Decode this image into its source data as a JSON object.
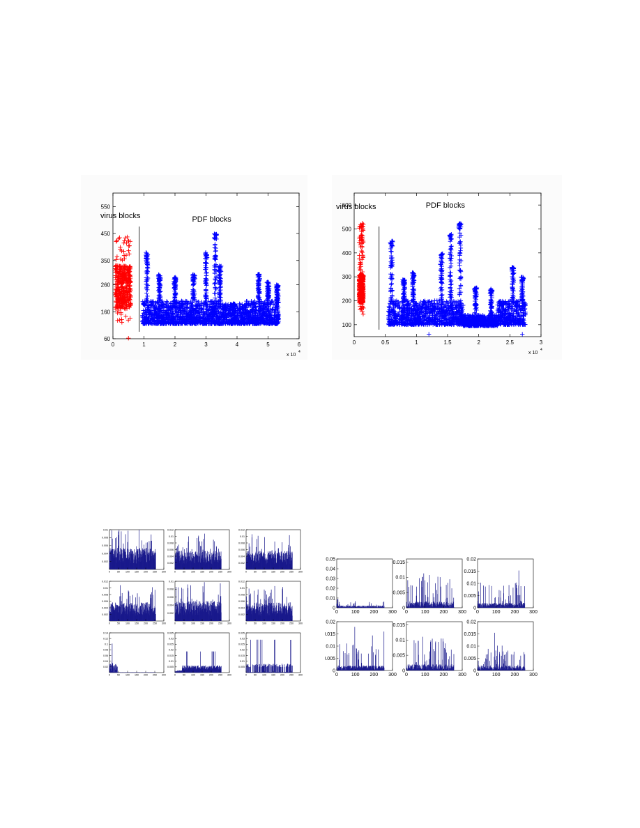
{
  "colors": {
    "virus": "#ff0000",
    "pdf": "#0000ff",
    "bar": "#1a1a8c",
    "axis": "#000000",
    "panel_bg": "#fbfbfb"
  },
  "chart_data": [
    {
      "type": "scatter",
      "annotations": [
        "virus blocks",
        "PDF blocks"
      ],
      "x_multiplier": "x 10",
      "x_exponent": "4",
      "xlim": [
        0,
        6
      ],
      "ylim": [
        60,
        600
      ],
      "xticks": [
        0,
        1,
        2,
        3,
        4,
        5,
        6
      ],
      "yticks": [
        60,
        160,
        260,
        350,
        450,
        550
      ],
      "divider_x": 0.85,
      "series": [
        {
          "marker": "+",
          "color": "#ff0000",
          "ranges": [
            {
              "x": [
                0.08,
                0.58
              ],
              "y_band": [
                120,
                440
              ],
              "core": [
                170,
                330
              ]
            }
          ],
          "outliers": [
            [
              0.5,
              62
            ]
          ]
        },
        {
          "marker": "+",
          "color": "#0000ff",
          "ranges": [
            {
              "x": [
                0.95,
                2.8
              ],
              "base": [
                115,
                200
              ],
              "peaks": [
                [
                  1.1,
                  380
                ],
                [
                  1.5,
                  300
                ],
                [
                  2.0,
                  290
                ],
                [
                  2.6,
                  300
                ]
              ]
            },
            {
              "x": [
                2.8,
                3.55
              ],
              "base": [
                115,
                200
              ],
              "peaks": [
                [
                  3.0,
                  380
                ],
                [
                  3.3,
                  450
                ],
                [
                  3.45,
                  330
                ]
              ]
            },
            {
              "x": [
                3.55,
                4.3
              ],
              "base": [
                115,
                190
              ],
              "peaks": [
                [
                  3.9,
                  180
                ]
              ]
            },
            {
              "x": [
                4.3,
                5.35
              ],
              "base": [
                115,
                200
              ],
              "peaks": [
                [
                  4.7,
                  300
                ],
                [
                  5.0,
                  270
                ],
                [
                  5.3,
                  260
                ]
              ]
            }
          ]
        }
      ]
    },
    {
      "type": "scatter",
      "annotations": [
        "virus blocks",
        "PDF blocks"
      ],
      "x_multiplier": "x 10",
      "x_exponent": "4",
      "xlim": [
        0,
        3
      ],
      "ylim": [
        50,
        650
      ],
      "xticks": [
        0,
        0.5,
        1,
        1.5,
        2,
        2.5,
        3
      ],
      "yticks": [
        100,
        200,
        300,
        400,
        500,
        600
      ],
      "divider_x": 0.4,
      "series": [
        {
          "marker": "+",
          "color": "#ff0000",
          "ranges": [
            {
              "x": [
                0.08,
                0.15
              ],
              "y_band": [
                140,
                530
              ],
              "core": [
                190,
                310
              ]
            }
          ],
          "outliers": []
        },
        {
          "marker": "+",
          "color": "#0000ff",
          "ranges": [
            {
              "x": [
                0.55,
                1.0
              ],
              "base": [
                100,
                200
              ],
              "peaks": [
                [
                  0.6,
                  450
                ],
                [
                  0.8,
                  290
                ],
                [
                  0.95,
                  320
                ]
              ]
            },
            {
              "x": [
                1.0,
                1.75
              ],
              "base": [
                100,
                200
              ],
              "peaks": [
                [
                  1.4,
                  400
                ],
                [
                  1.55,
                  480
                ],
                [
                  1.7,
                  530
                ]
              ]
            },
            {
              "x": [
                1.75,
                2.3
              ],
              "base": [
                95,
                140
              ],
              "peaks": [
                [
                  1.95,
                  260
                ],
                [
                  2.2,
                  250
                ]
              ]
            },
            {
              "x": [
                2.3,
                2.75
              ],
              "base": [
                100,
                200
              ],
              "peaks": [
                [
                  2.55,
                  340
                ],
                [
                  2.7,
                  300
                ]
              ]
            }
          ],
          "outliers": [
            [
              1.2,
              60
            ],
            [
              2.7,
              60
            ]
          ]
        }
      ]
    },
    {
      "type": "bar",
      "layout": "3x3 grid of histograms",
      "panels": [
        {
          "xticks": [
            0,
            50,
            100,
            150,
            200,
            250,
            300
          ],
          "yticks": [
            0.002,
            0.004,
            0.006,
            0.008,
            0.01
          ],
          "ymax": 0.01,
          "profile": "uniform",
          "level": 0.0048
        },
        {
          "xticks": [
            0,
            50,
            100,
            150,
            200,
            250,
            300
          ],
          "yticks": [
            0.002,
            0.004,
            0.006,
            0.008,
            0.01,
            0.012
          ],
          "ymax": 0.012,
          "profile": "uniform",
          "level": 0.005
        },
        {
          "xticks": [
            0,
            50,
            100,
            150,
            200,
            250,
            300
          ],
          "yticks": [
            0.002,
            0.004,
            0.006,
            0.008,
            0.01,
            0.012
          ],
          "ymax": 0.012,
          "profile": "uniform",
          "level": 0.005
        },
        {
          "xticks": [
            0,
            50,
            100,
            150,
            200,
            250,
            300
          ],
          "yticks": [
            0.002,
            0.004,
            0.006,
            0.008,
            0.01,
            0.012
          ],
          "ymax": 0.012,
          "profile": "uniform",
          "level": 0.005
        },
        {
          "xticks": [
            0,
            50,
            100,
            150,
            200,
            250,
            300
          ],
          "yticks": [
            0.002,
            0.004,
            0.006,
            0.008,
            0.01
          ],
          "ymax": 0.01,
          "profile": "uniform",
          "level": 0.0045
        },
        {
          "xticks": [
            0,
            50,
            100,
            150,
            200,
            250,
            300
          ],
          "yticks": [
            0.002,
            0.004,
            0.006,
            0.008,
            0.01,
            0.012
          ],
          "ymax": 0.012,
          "profile": "uniform",
          "level": 0.005
        },
        {
          "xticks": [
            0,
            50,
            100,
            150,
            200,
            250,
            300
          ],
          "yticks": [
            0.02,
            0.04,
            0.06,
            0.08,
            0.1,
            0.12,
            0.14
          ],
          "ymax": 0.14,
          "profile": "spike",
          "level": 0.004
        },
        {
          "xticks": [
            0,
            50,
            100,
            150,
            200,
            250,
            300
          ],
          "yticks": [
            0.005,
            0.01,
            0.015,
            0.02,
            0.025,
            0.03,
            0.035
          ],
          "ymax": 0.035,
          "profile": "low",
          "level": 0.004
        },
        {
          "xticks": [
            0,
            50,
            100,
            150,
            200,
            250,
            300
          ],
          "yticks": [
            0.005,
            0.01,
            0.015,
            0.02,
            0.025,
            0.03,
            0.035
          ],
          "ymax": 0.035,
          "profile": "sparse",
          "level": 0.004
        }
      ]
    },
    {
      "type": "bar",
      "layout": "2x3 grid of histograms",
      "panels": [
        {
          "xticks": [
            0,
            100,
            200,
            300
          ],
          "yticks": [
            0,
            0.01,
            0.02,
            0.03,
            0.04,
            0.05
          ],
          "ymax": 0.05,
          "profile": "flat",
          "level": 0.003
        },
        {
          "xticks": [
            0,
            100,
            200,
            300
          ],
          "yticks": [
            0,
            0.005,
            0.01,
            0.015
          ],
          "ymax": 0.016,
          "profile": "noisy",
          "level": 0.004
        },
        {
          "xticks": [
            0,
            100,
            200,
            300
          ],
          "yticks": [
            0,
            0.005,
            0.01,
            0.015,
            0.02
          ],
          "ymax": 0.02,
          "profile": "noisy",
          "level": 0.004
        },
        {
          "xticks": [
            0,
            100,
            200,
            300
          ],
          "yticks": [
            0,
            0.005,
            0.01,
            0.015,
            0.02
          ],
          "ymax": 0.02,
          "profile": "noisy",
          "level": 0.004
        },
        {
          "xticks": [
            0,
            100,
            200,
            300
          ],
          "yticks": [
            0,
            0.005,
            0.01,
            0.015
          ],
          "ymax": 0.016,
          "profile": "noisy",
          "level": 0.004
        },
        {
          "xticks": [
            0,
            100,
            200,
            300
          ],
          "yticks": [
            0,
            0.005,
            0.01,
            0.015,
            0.02
          ],
          "ymax": 0.02,
          "profile": "noisy",
          "level": 0.004
        }
      ]
    }
  ]
}
